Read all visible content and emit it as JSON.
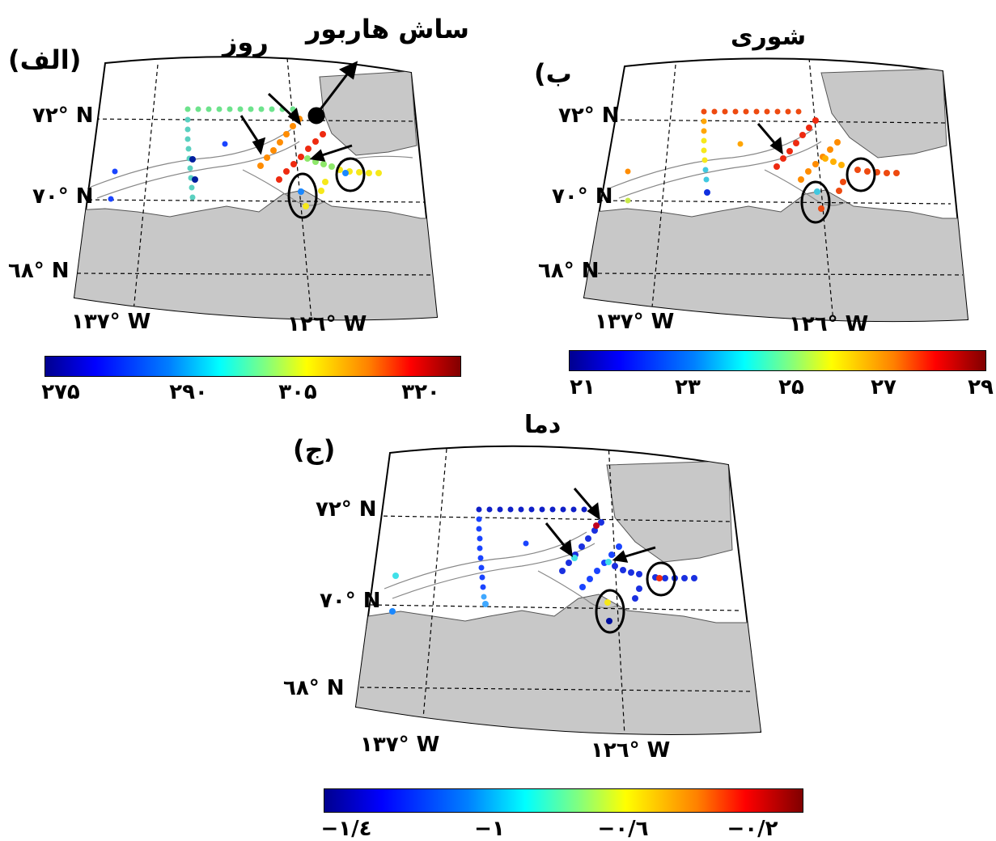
{
  "callout": {
    "text": "ساش هاربور",
    "text2": "روز"
  },
  "panels": [
    {
      "id": "a",
      "letter": "(الف)",
      "title": "",
      "lat_labels": [
        "۷۲° N",
        "۷۰° N",
        "٦۸° N"
      ],
      "lon_labels": [
        "۱۳۷° W",
        "۱۲٦° W"
      ],
      "colorbar_ticks": [
        "۲۷۵",
        "۲۹۰",
        "۳۰۵",
        "۳۲۰"
      ],
      "colorbar_range": [
        270,
        330
      ],
      "variable": "روز",
      "value_scale": "day-of-year"
    },
    {
      "id": "b",
      "letter": "(ب",
      "title": "شوری",
      "lat_labels": [
        "۷۲° N",
        "۷۰° N",
        "٦۸° N"
      ],
      "lon_labels": [
        "۱۳۷° W",
        "۱۲٦° W"
      ],
      "colorbar_ticks": [
        "۲۱",
        "۲۳",
        "۲۵",
        "۲۷",
        "۲۹"
      ],
      "colorbar_range": [
        21,
        29
      ],
      "variable": "شوری"
    },
    {
      "id": "c",
      "letter": "(ج)",
      "title": "دما",
      "lat_labels": [
        "۷۲° N",
        "۷۰° N",
        "٦۸° N"
      ],
      "lon_labels": [
        "۱۳۷° W",
        "۱۲٦° W"
      ],
      "colorbar_ticks": [
        "−۱/٤",
        "−۱",
        "−۰/٦",
        "−۰/۲"
      ],
      "colorbar_range": [
        -1.4,
        -0.2
      ],
      "variable": "دما"
    }
  ],
  "colors": {
    "land": "#c8c8c8",
    "coast": "#666666",
    "contour": "#888888",
    "marker_ring": "#000000"
  }
}
